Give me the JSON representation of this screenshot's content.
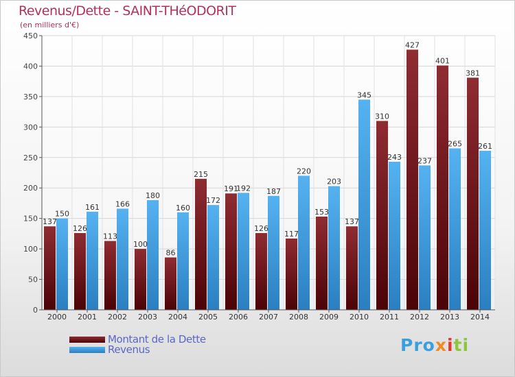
{
  "title": "Revenus/Dette - SAINT-THéODORIT",
  "unit_label": "(en milliers d'€)",
  "legend": {
    "debt_label": "Montant de la Dette",
    "revenue_label": "Revenus",
    "debt_color": "#7a1e22",
    "revenue_color": "#3f9ee2"
  },
  "brand": {
    "p1": "Pro",
    "p2": "x",
    "p3": "i",
    "p4": "ti"
  },
  "chart_data": {
    "type": "bar",
    "categories": [
      "2000",
      "2001",
      "2002",
      "2003",
      "2004",
      "2005",
      "2006",
      "2007",
      "2008",
      "2009",
      "2010",
      "2011",
      "2012",
      "2013",
      "2014"
    ],
    "series": [
      {
        "name": "Montant de la Dette",
        "values": [
          137,
          126,
          113,
          100,
          86,
          215,
          191,
          126,
          117,
          153,
          137,
          310,
          427,
          401,
          381
        ]
      },
      {
        "name": "Revenus",
        "values": [
          150,
          161,
          166,
          180,
          160,
          172,
          192,
          187,
          220,
          203,
          345,
          243,
          237,
          265,
          261
        ]
      }
    ],
    "ylim": [
      0,
      450
    ],
    "yticks": [
      0,
      50,
      100,
      150,
      200,
      250,
      300,
      350,
      400,
      450
    ],
    "grid": true,
    "legend_position": "bottom-left"
  }
}
